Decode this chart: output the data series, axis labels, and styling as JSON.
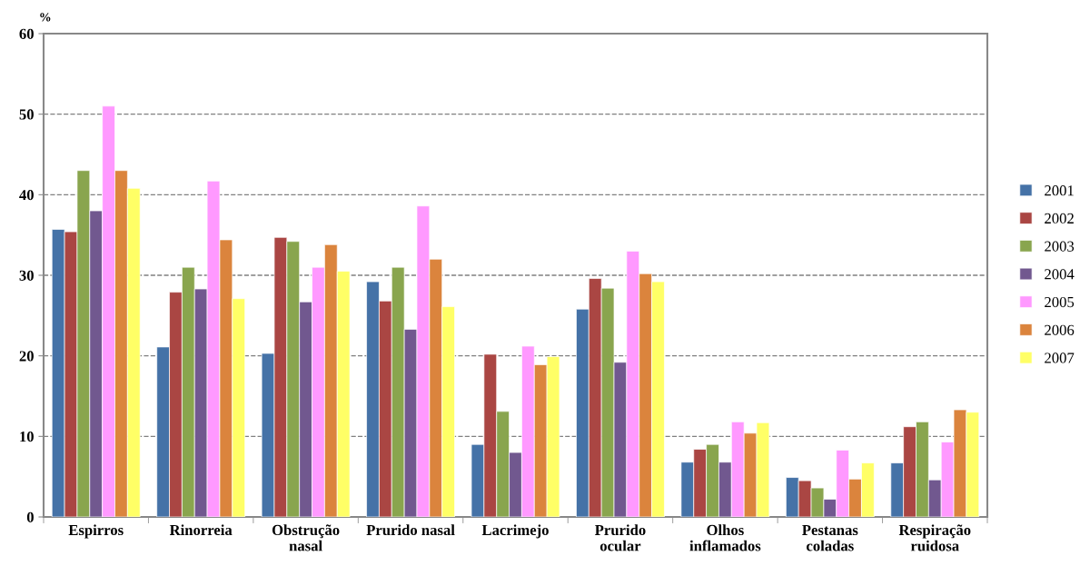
{
  "chart_data": {
    "type": "bar",
    "ylabel": "%",
    "categories": [
      "Espirros",
      "Rinorreia",
      "Obstrução\nnasal",
      "Prurido nasal",
      "Lacrimejo",
      "Prurido\nocular",
      "Olhos\ninflamados",
      "Pestanas\ncoladas",
      "Respiração\nruidosa"
    ],
    "series": [
      {
        "name": "2001",
        "color": "#4572a7",
        "values": [
          35.7,
          21.1,
          20.3,
          29.2,
          9,
          25.8,
          6.8,
          4.9,
          6.7
        ]
      },
      {
        "name": "2002",
        "color": "#aa4643",
        "values": [
          35.4,
          27.9,
          34.7,
          26.8,
          20.2,
          29.6,
          8.4,
          4.5,
          11.2
        ]
      },
      {
        "name": "2003",
        "color": "#89a54e",
        "values": [
          43,
          31,
          34.2,
          31,
          13.1,
          28.4,
          9,
          3.6,
          11.8
        ]
      },
      {
        "name": "2004",
        "color": "#71588f",
        "values": [
          38,
          28.3,
          26.7,
          23.3,
          8,
          19.2,
          6.8,
          2.2,
          4.6
        ]
      },
      {
        "name": "2005",
        "color": "#ff99ff",
        "values": [
          51,
          41.7,
          31,
          38.6,
          21.2,
          33,
          11.8,
          8.3,
          9.3
        ]
      },
      {
        "name": "2006",
        "color": "#db843d",
        "values": [
          43,
          34.4,
          33.8,
          32,
          18.9,
          30.2,
          10.4,
          4.7,
          13.3
        ]
      },
      {
        "name": "2007",
        "color": "#ffff66",
        "values": [
          40.8,
          27.1,
          30.5,
          26.1,
          19.9,
          29.2,
          11.7,
          6.7,
          13
        ]
      }
    ],
    "ylim": [
      0,
      60
    ],
    "yticks": [
      0,
      10,
      20,
      30,
      40,
      50,
      60
    ],
    "grid": "y",
    "legend": "right"
  }
}
